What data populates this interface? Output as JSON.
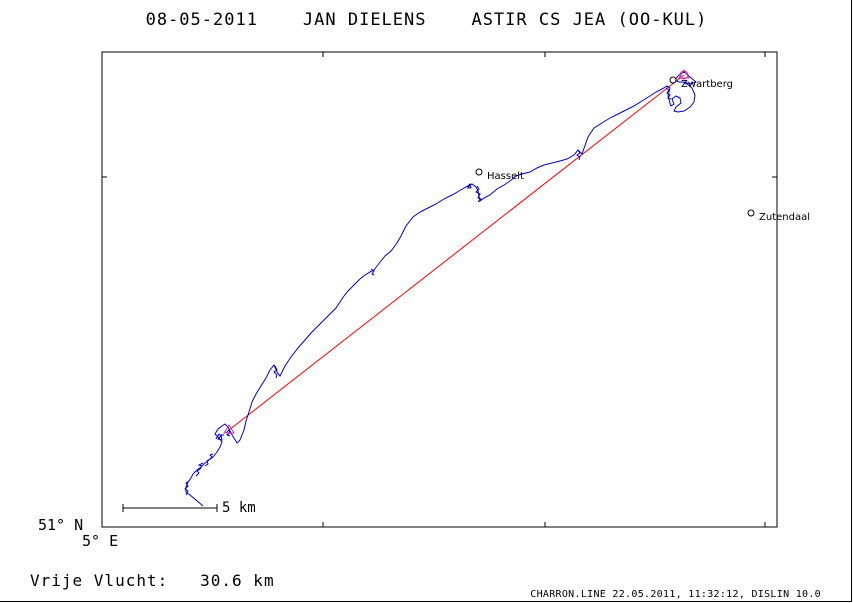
{
  "header": {
    "date": "08-05-2011",
    "pilot": "JAN DIELENS",
    "glider": "ASTIR CS JEA (OO-KUL)"
  },
  "axes": {
    "lat_label": "51° N",
    "lon_label": "5° E"
  },
  "scale_bar": {
    "label": "5 km"
  },
  "places": [
    {
      "name": "Zwartberg",
      "marker": "circle"
    },
    {
      "name": "Hasselt",
      "marker": "circle"
    },
    {
      "name": "Zutendaal",
      "marker": "circle"
    }
  ],
  "summary": {
    "label": "Vrije Vlucht:",
    "distance": "30.6 km"
  },
  "footer": "CHARRON.LINE 22.05.2011, 11:32:12, DISLIN 10.0",
  "colors": {
    "track": "#0000cc",
    "straight_line": "#ff0000",
    "markers": "#cc3399",
    "frame": "#000000"
  }
}
